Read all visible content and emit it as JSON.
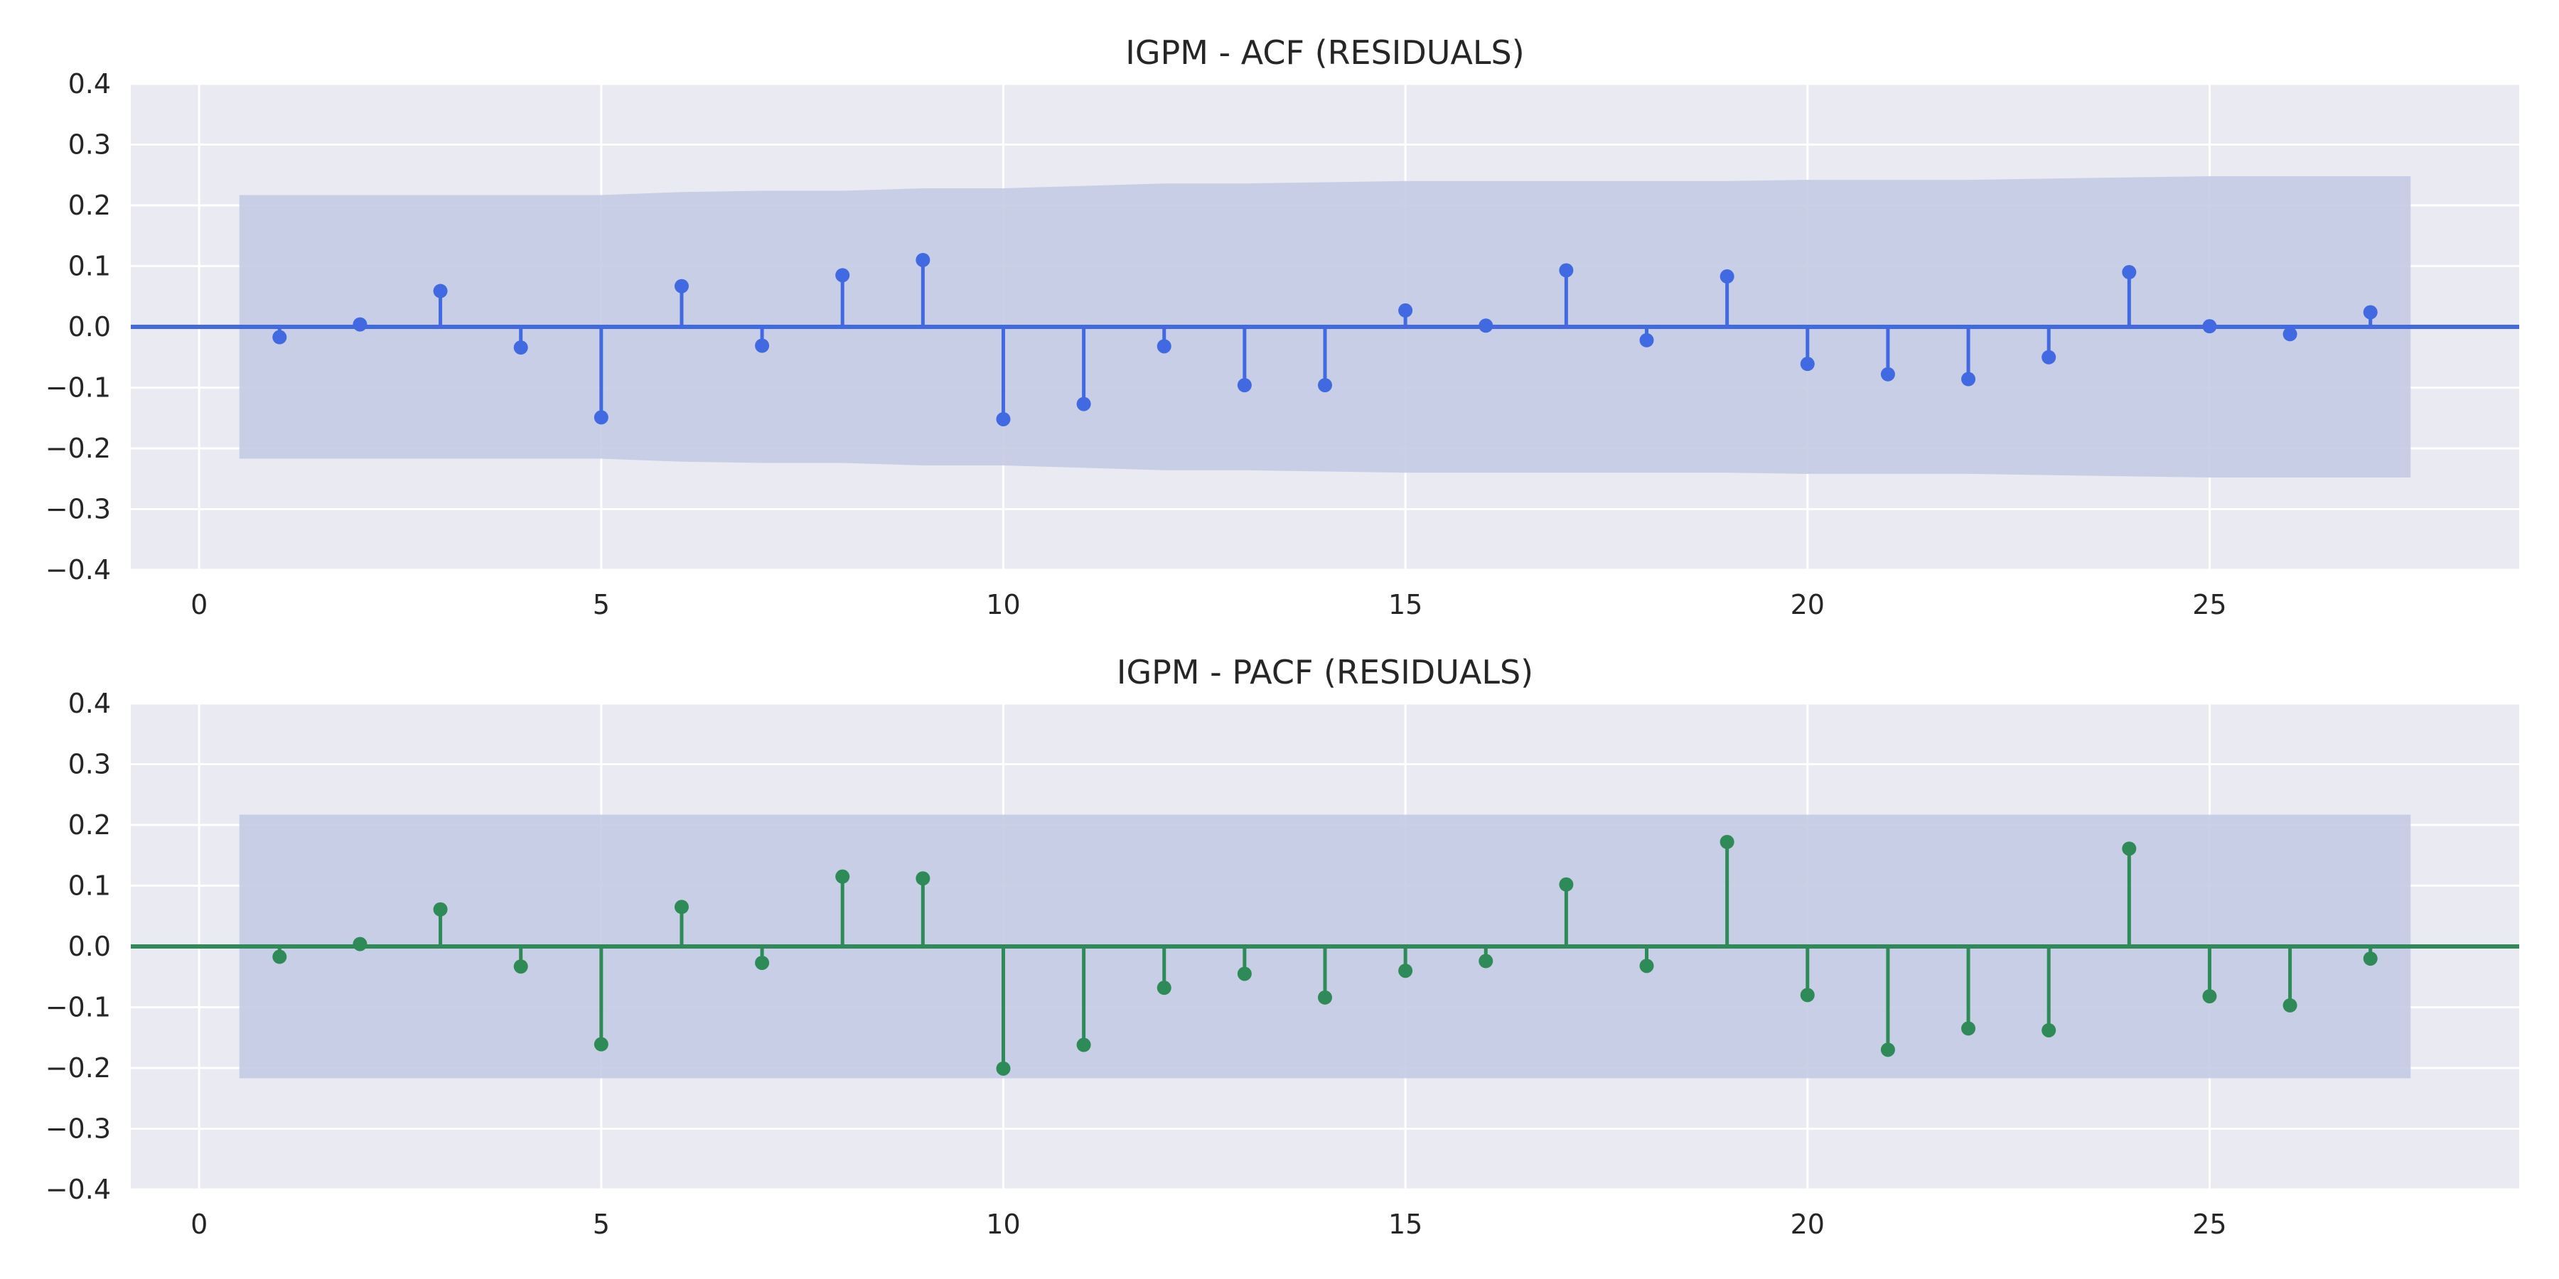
{
  "chart_data": [
    {
      "type": "stem",
      "title": "IGPM - ACF (RESIDUALS)",
      "xlabel": "",
      "ylabel": "",
      "xlim": [
        -0.85,
        28.85
      ],
      "ylim": [
        -0.4,
        0.4
      ],
      "x_ticks": [
        0,
        5,
        10,
        15,
        20,
        25
      ],
      "y_ticks": [
        -0.4,
        -0.3,
        -0.2,
        -0.1,
        0.0,
        0.1,
        0.2,
        0.3,
        0.4
      ],
      "x_tick_labels": [
        "0",
        "5",
        "10",
        "15",
        "20",
        "25"
      ],
      "y_tick_labels": [
        "−0.4",
        "−0.3",
        "−0.2",
        "−0.1",
        "0.0",
        "0.1",
        "0.2",
        "0.3",
        "0.4"
      ],
      "grid": true,
      "color": "#4169e1",
      "band_color": "#c3cae3",
      "lags": [
        1,
        2,
        3,
        4,
        5,
        6,
        7,
        8,
        9,
        10,
        11,
        12,
        13,
        14,
        15,
        16,
        17,
        18,
        19,
        20,
        21,
        22,
        23,
        24,
        25,
        26,
        27
      ],
      "values": [
        -0.017,
        0.004,
        0.059,
        -0.034,
        -0.149,
        0.067,
        -0.031,
        0.085,
        0.11,
        -0.152,
        -0.127,
        -0.032,
        -0.096,
        -0.096,
        0.027,
        0.002,
        0.093,
        -0.022,
        0.083,
        -0.061,
        -0.078,
        -0.086,
        -0.05,
        0.09,
        0.001,
        -0.012,
        0.024
      ],
      "confidence_band": {
        "x": [
          0.5,
          1,
          2,
          3,
          4,
          5,
          6,
          7,
          8,
          9,
          10,
          11,
          12,
          13,
          14,
          15,
          16,
          17,
          18,
          19,
          20,
          21,
          22,
          23,
          24,
          25,
          26,
          27,
          27.5
        ],
        "upper": [
          0.217,
          0.217,
          0.217,
          0.217,
          0.217,
          0.217,
          0.222,
          0.224,
          0.224,
          0.228,
          0.228,
          0.232,
          0.236,
          0.236,
          0.238,
          0.24,
          0.24,
          0.24,
          0.24,
          0.24,
          0.242,
          0.242,
          0.242,
          0.244,
          0.246,
          0.248,
          0.248,
          0.248,
          0.248
        ]
      }
    },
    {
      "type": "stem",
      "title": "IGPM - PACF (RESIDUALS)",
      "xlabel": "",
      "ylabel": "",
      "xlim": [
        -0.85,
        28.85
      ],
      "ylim": [
        -0.4,
        0.4
      ],
      "x_ticks": [
        0,
        5,
        10,
        15,
        20,
        25
      ],
      "y_ticks": [
        -0.4,
        -0.3,
        -0.2,
        -0.1,
        0.0,
        0.1,
        0.2,
        0.3,
        0.4
      ],
      "x_tick_labels": [
        "0",
        "5",
        "10",
        "15",
        "20",
        "25"
      ],
      "y_tick_labels": [
        "−0.4",
        "−0.3",
        "−0.2",
        "−0.1",
        "0.0",
        "0.1",
        "0.2",
        "0.3",
        "0.4"
      ],
      "grid": true,
      "color": "#2e8b57",
      "band_color": "#c3cae3",
      "lags": [
        1,
        2,
        3,
        4,
        5,
        6,
        7,
        8,
        9,
        10,
        11,
        12,
        13,
        14,
        15,
        16,
        17,
        18,
        19,
        20,
        21,
        22,
        23,
        24,
        25,
        26,
        27
      ],
      "values": [
        -0.017,
        0.004,
        0.061,
        -0.033,
        -0.161,
        0.065,
        -0.027,
        0.115,
        0.112,
        -0.201,
        -0.162,
        -0.068,
        -0.045,
        -0.084,
        -0.04,
        -0.024,
        0.102,
        -0.032,
        0.172,
        -0.08,
        -0.17,
        -0.135,
        -0.138,
        0.161,
        -0.082,
        -0.097,
        -0.02
      ],
      "confidence_band": {
        "x": [
          0.5,
          27.5
        ],
        "upper": [
          0.217,
          0.217
        ]
      }
    }
  ]
}
